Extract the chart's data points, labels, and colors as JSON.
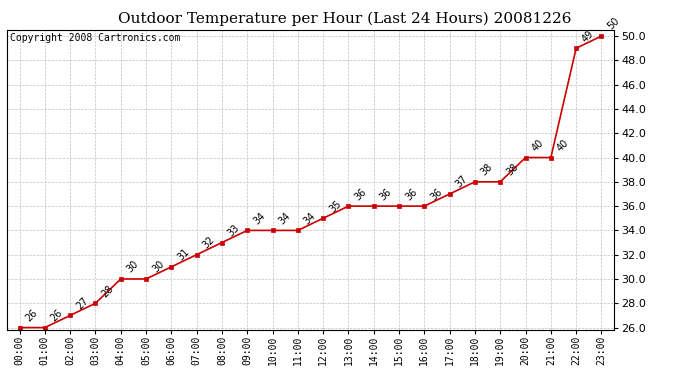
{
  "title": "Outdoor Temperature per Hour (Last 24 Hours) 20081226",
  "copyright": "Copyright 2008 Cartronics.com",
  "hours": [
    "00:00",
    "01:00",
    "02:00",
    "03:00",
    "04:00",
    "05:00",
    "06:00",
    "07:00",
    "08:00",
    "09:00",
    "10:00",
    "11:00",
    "12:00",
    "13:00",
    "14:00",
    "15:00",
    "16:00",
    "17:00",
    "18:00",
    "19:00",
    "20:00",
    "21:00",
    "22:00",
    "23:00"
  ],
  "values": [
    26,
    26,
    27,
    28,
    30,
    30,
    31,
    32,
    33,
    34,
    34,
    34,
    35,
    36,
    36,
    36,
    36,
    37,
    38,
    38,
    40,
    40,
    49,
    50
  ],
  "line_color": "#cc0000",
  "marker_color": "#cc0000",
  "grid_color": "#c0c0c0",
  "background_color": "#ffffff",
  "plot_bg_color": "#ffffff",
  "ylim_min": 26.0,
  "ylim_max": 50.0,
  "ytick_step": 2.0,
  "title_fontsize": 11,
  "copyright_fontsize": 7,
  "tick_fontsize": 7,
  "annot_fontsize": 7
}
